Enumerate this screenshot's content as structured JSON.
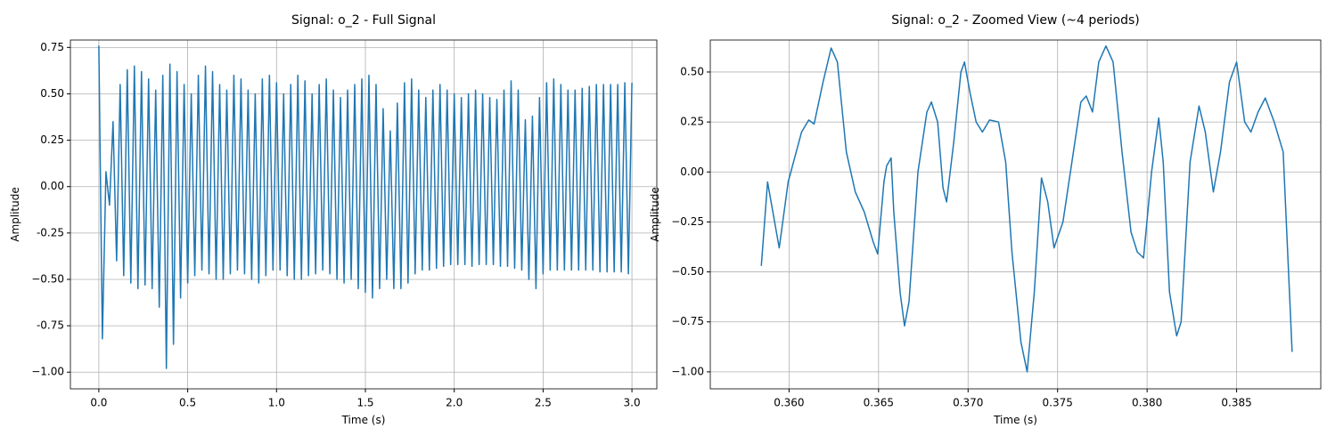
{
  "chart_data": [
    {
      "type": "line",
      "title": "Signal: o_2 - Full Signal",
      "x_label": "Time (s)",
      "y_label": "Amplitude",
      "color": "#1f77b4",
      "grid": true,
      "xlim": [
        -0.16,
        3.14
      ],
      "ylim": [
        -1.09,
        0.79
      ],
      "xticks": [
        {
          "value": 0,
          "label": "0.0"
        },
        0.5,
        {
          "value": 1,
          "label": "1.0"
        },
        1.5,
        {
          "value": 2,
          "label": "2.0"
        },
        2.5,
        {
          "value": 3,
          "label": "3.0"
        }
      ],
      "yticks": [
        {
          "value": -1,
          "label": "−1.00"
        },
        -0.75,
        {
          "value": -0.5,
          "label": "−0.50"
        },
        -0.25,
        {
          "value": 0,
          "label": "0.00"
        },
        0.25,
        {
          "value": 0.5,
          "label": "0.50"
        },
        0.75
      ],
      "x": [
        0,
        0.02,
        0.04,
        0.06,
        0.08,
        0.1,
        0.12,
        0.14,
        0.16,
        0.18,
        0.2,
        0.22,
        0.24,
        0.26,
        0.28,
        0.3,
        0.32,
        0.34,
        0.36,
        0.38,
        0.4,
        0.42,
        0.44,
        0.46,
        0.48,
        0.5,
        0.52,
        0.54,
        0.56,
        0.58,
        0.6,
        0.62,
        0.64,
        0.66,
        0.68,
        0.7,
        0.72,
        0.74,
        0.76,
        0.78,
        0.8,
        0.82,
        0.84,
        0.86,
        0.88,
        0.9,
        0.92,
        0.94,
        0.96,
        0.98,
        1,
        1.02,
        1.04,
        1.06,
        1.08,
        1.1,
        1.12,
        1.14,
        1.16,
        1.18,
        1.2,
        1.22,
        1.24,
        1.26,
        1.28,
        1.3,
        1.32,
        1.34,
        1.36,
        1.38,
        1.4,
        1.42,
        1.44,
        1.46,
        1.48,
        1.5,
        1.52,
        1.54,
        1.56,
        1.58,
        1.6,
        1.62,
        1.64,
        1.66,
        1.68,
        1.7,
        1.72,
        1.74,
        1.76,
        1.78,
        1.8,
        1.82,
        1.84,
        1.86,
        1.88,
        1.9,
        1.92,
        1.94,
        1.96,
        1.98,
        2,
        2.02,
        2.04,
        2.06,
        2.08,
        2.1,
        2.12,
        2.14,
        2.16,
        2.18,
        2.2,
        2.22,
        2.24,
        2.26,
        2.28,
        2.3,
        2.32,
        2.34,
        2.36,
        2.38,
        2.4,
        2.42,
        2.44,
        2.46,
        2.48,
        2.5,
        2.52,
        2.54,
        2.56,
        2.58,
        2.6,
        2.62,
        2.64,
        2.66,
        2.68,
        2.7,
        2.72,
        2.74,
        2.76,
        2.78,
        2.8,
        2.82,
        2.84,
        2.86,
        2.88,
        2.9,
        2.92,
        2.94,
        2.96,
        2.98,
        3
      ],
      "values": [
        0.76,
        -0.82,
        0.08,
        -0.1,
        0.35,
        -0.4,
        0.55,
        -0.48,
        0.63,
        -0.52,
        0.65,
        -0.55,
        0.62,
        -0.53,
        0.58,
        -0.55,
        0.52,
        -0.65,
        0.6,
        -0.98,
        0.66,
        -0.85,
        0.62,
        -0.6,
        0.55,
        -0.52,
        0.5,
        -0.48,
        0.6,
        -0.45,
        0.65,
        -0.47,
        0.62,
        -0.5,
        0.55,
        -0.5,
        0.52,
        -0.47,
        0.6,
        -0.45,
        0.58,
        -0.47,
        0.52,
        -0.5,
        0.5,
        -0.52,
        0.58,
        -0.48,
        0.6,
        -0.45,
        0.56,
        -0.45,
        0.5,
        -0.48,
        0.55,
        -0.5,
        0.6,
        -0.5,
        0.57,
        -0.48,
        0.5,
        -0.47,
        0.55,
        -0.45,
        0.58,
        -0.47,
        0.52,
        -0.5,
        0.48,
        -0.52,
        0.52,
        -0.5,
        0.55,
        -0.55,
        0.58,
        -0.57,
        0.6,
        -0.6,
        0.55,
        -0.55,
        0.42,
        -0.5,
        0.3,
        -0.55,
        0.45,
        -0.55,
        0.56,
        -0.52,
        0.58,
        -0.47,
        0.52,
        -0.45,
        0.48,
        -0.45,
        0.52,
        -0.44,
        0.55,
        -0.43,
        0.52,
        -0.42,
        0.5,
        -0.42,
        0.48,
        -0.42,
        0.5,
        -0.43,
        0.52,
        -0.42,
        0.5,
        -0.42,
        0.48,
        -0.42,
        0.47,
        -0.43,
        0.52,
        -0.43,
        0.57,
        -0.44,
        0.52,
        -0.45,
        0.36,
        -0.5,
        0.38,
        -0.55,
        0.48,
        -0.47,
        0.56,
        -0.45,
        0.58,
        -0.45,
        0.55,
        -0.45,
        0.52,
        -0.45,
        0.52,
        -0.45,
        0.53,
        -0.45,
        0.54,
        -0.45,
        0.55,
        -0.46,
        0.55,
        -0.46,
        0.55,
        -0.46,
        0.55,
        -0.46,
        0.56,
        -0.47,
        0.56
      ]
    },
    {
      "type": "line",
      "title": "Signal: o_2 - Zoomed View (~4 periods)",
      "x_label": "Time (s)",
      "y_label": "Amplitude",
      "color": "#1f77b4",
      "grid": true,
      "xlim": [
        0.3556,
        0.3897
      ],
      "ylim": [
        -1.085,
        0.66
      ],
      "xticks": [
        {
          "value": 0.36,
          "label": "0.360"
        },
        0.365,
        {
          "value": 0.37,
          "label": "0.370"
        },
        0.375,
        {
          "value": 0.38,
          "label": "0.380"
        },
        0.385
      ],
      "yticks": [
        {
          "value": -1,
          "label": "−1.00"
        },
        {
          "value": -0.75,
          "label": "−0.75"
        },
        {
          "value": -0.5,
          "label": "−0.50"
        },
        {
          "value": -0.25,
          "label": "−0.25"
        },
        {
          "value": 0,
          "label": "0.00"
        },
        0.25,
        {
          "value": 0.5,
          "label": "0.50"
        }
      ],
      "x": [
        0.35845,
        0.3588,
        0.35945,
        0.35995,
        0.3607,
        0.3611,
        0.3614,
        0.3619,
        0.36235,
        0.3627,
        0.3632,
        0.3637,
        0.3642,
        0.3647,
        0.36495,
        0.3653,
        0.36545,
        0.3657,
        0.36585,
        0.3662,
        0.36645,
        0.3667,
        0.3672,
        0.3677,
        0.36795,
        0.3683,
        0.3686,
        0.3688,
        0.3692,
        0.3696,
        0.3698,
        0.3701,
        0.37045,
        0.3708,
        0.3712,
        0.3717,
        0.3721,
        0.37245,
        0.37295,
        0.3733,
        0.3737,
        0.3741,
        0.37445,
        0.3748,
        0.3753,
        0.3758,
        0.3763,
        0.3766,
        0.37695,
        0.3773,
        0.3777,
        0.3781,
        0.3786,
        0.3791,
        0.37945,
        0.3798,
        0.38025,
        0.38065,
        0.3809,
        0.38125,
        0.38165,
        0.3819,
        0.3824,
        0.3829,
        0.38325,
        0.3837,
        0.3841,
        0.3846,
        0.385,
        0.38545,
        0.3858,
        0.3862,
        0.3866,
        0.3871,
        0.3876,
        0.3881
      ],
      "values": [
        -0.47,
        -0.05,
        -0.38,
        -0.05,
        0.2,
        0.26,
        0.24,
        0.45,
        0.62,
        0.55,
        0.1,
        -0.1,
        -0.2,
        -0.35,
        -0.41,
        -0.05,
        0.03,
        0.07,
        -0.2,
        -0.6,
        -0.77,
        -0.65,
        0,
        0.3,
        0.35,
        0.25,
        -0.08,
        -0.15,
        0.15,
        0.5,
        0.55,
        0.4,
        0.25,
        0.2,
        0.26,
        0.25,
        0.05,
        -0.4,
        -0.85,
        -1,
        -0.6,
        -0.03,
        -0.15,
        -0.38,
        -0.25,
        0.05,
        0.35,
        0.38,
        0.3,
        0.55,
        0.63,
        0.55,
        0.1,
        -0.3,
        -0.4,
        -0.43,
        0,
        0.27,
        0.05,
        -0.6,
        -0.82,
        -0.75,
        0.05,
        0.33,
        0.2,
        -0.1,
        0.1,
        0.45,
        0.55,
        0.25,
        0.2,
        0.3,
        0.37,
        0.25,
        0.1,
        -0.9
      ]
    }
  ]
}
